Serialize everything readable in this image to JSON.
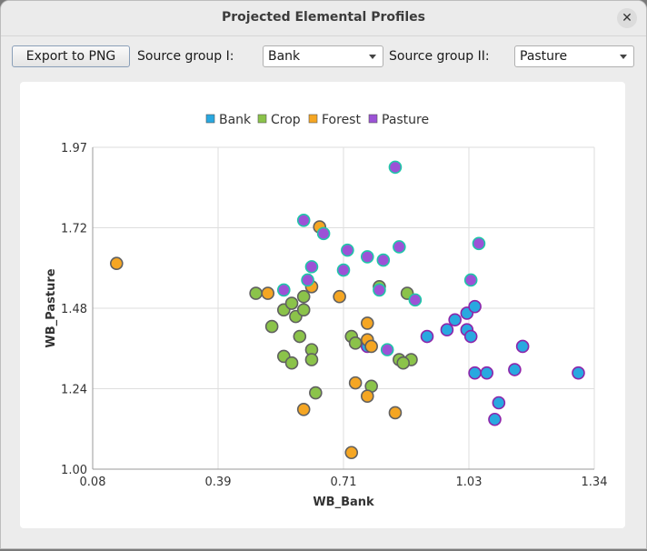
{
  "window": {
    "title": "Projected Elemental Profiles"
  },
  "toolbar": {
    "export_label": "Export to PNG",
    "group1_label": "Source group I:",
    "group1_value": "Bank",
    "group2_label": "Source group II:",
    "group2_value": "Pasture"
  },
  "colors": {
    "Bank": "#29a8e0",
    "Crop": "#8bc34a",
    "Forest": "#f5a623",
    "Pasture": "#9c52d6",
    "edge_Bank": "#8e24aa",
    "edge_Pasture": "#1fc7a8",
    "edge_default": "#606060"
  },
  "chart_data": {
    "type": "scatter",
    "xlabel": "WB_Bank",
    "ylabel": "WB_Pasture",
    "xlim": [
      0.08,
      1.34
    ],
    "ylim": [
      1.0,
      1.97
    ],
    "x_ticks": [
      "0.08",
      "0.39",
      "0.71",
      "1.03",
      "1.34"
    ],
    "y_ticks": [
      "1.00",
      "1.24",
      "1.48",
      "1.72",
      "1.97"
    ],
    "grid": true,
    "legend_position": "top-center",
    "legend": [
      "Bank",
      "Crop",
      "Forest",
      "Pasture"
    ],
    "series": [
      {
        "name": "Bank",
        "points": [
          [
            0.92,
            1.4
          ],
          [
            0.97,
            1.42
          ],
          [
            0.99,
            1.45
          ],
          [
            1.02,
            1.42
          ],
          [
            1.03,
            1.4
          ],
          [
            1.02,
            1.47
          ],
          [
            1.04,
            1.49
          ],
          [
            1.04,
            1.29
          ],
          [
            1.07,
            1.29
          ],
          [
            1.1,
            1.2
          ],
          [
            1.09,
            1.15
          ],
          [
            1.14,
            1.3
          ],
          [
            1.16,
            1.37
          ],
          [
            1.3,
            1.29
          ],
          [
            0.77,
            1.37
          ]
        ]
      },
      {
        "name": "Crop",
        "points": [
          [
            0.49,
            1.53
          ],
          [
            0.53,
            1.43
          ],
          [
            0.56,
            1.48
          ],
          [
            0.58,
            1.5
          ],
          [
            0.59,
            1.46
          ],
          [
            0.61,
            1.52
          ],
          [
            0.61,
            1.48
          ],
          [
            0.6,
            1.4
          ],
          [
            0.56,
            1.34
          ],
          [
            0.58,
            1.32
          ],
          [
            0.63,
            1.36
          ],
          [
            0.63,
            1.33
          ],
          [
            0.64,
            1.23
          ],
          [
            0.73,
            1.4
          ],
          [
            0.74,
            1.38
          ],
          [
            0.8,
            1.55
          ],
          [
            0.87,
            1.53
          ],
          [
            0.88,
            1.33
          ],
          [
            0.85,
            1.33
          ],
          [
            0.78,
            1.25
          ],
          [
            0.86,
            1.32
          ]
        ]
      },
      {
        "name": "Forest",
        "points": [
          [
            0.14,
            1.62
          ],
          [
            0.52,
            1.53
          ],
          [
            0.63,
            1.55
          ],
          [
            0.65,
            1.73
          ],
          [
            0.7,
            1.52
          ],
          [
            0.77,
            1.44
          ],
          [
            0.77,
            1.39
          ],
          [
            0.78,
            1.37
          ],
          [
            0.74,
            1.26
          ],
          [
            0.77,
            1.22
          ],
          [
            0.61,
            1.18
          ],
          [
            0.73,
            1.05
          ],
          [
            0.84,
            1.17
          ]
        ]
      },
      {
        "name": "Pasture",
        "points": [
          [
            0.61,
            1.75
          ],
          [
            0.66,
            1.71
          ],
          [
            0.63,
            1.61
          ],
          [
            0.62,
            1.57
          ],
          [
            0.56,
            1.54
          ],
          [
            0.71,
            1.6
          ],
          [
            0.72,
            1.66
          ],
          [
            0.77,
            1.64
          ],
          [
            0.81,
            1.63
          ],
          [
            0.85,
            1.67
          ],
          [
            0.84,
            1.91
          ],
          [
            0.8,
            1.54
          ],
          [
            1.05,
            1.68
          ],
          [
            1.03,
            1.57
          ],
          [
            0.89,
            1.51
          ],
          [
            0.82,
            1.36
          ]
        ]
      }
    ]
  }
}
